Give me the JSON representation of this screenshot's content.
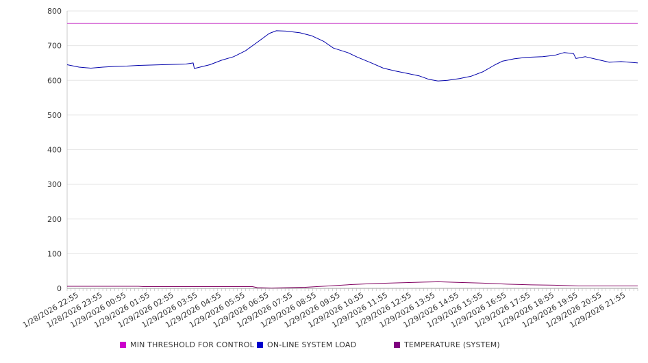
{
  "chart_data": {
    "type": "line",
    "title": "",
    "xlabel": "",
    "ylabel": "",
    "ylim": [
      0,
      800
    ],
    "yticks": [
      0,
      100,
      200,
      300,
      400,
      500,
      600,
      700,
      800
    ],
    "grid": true,
    "legend_position": "bottom",
    "categories": [
      "1/28/2026 22:55",
      "1/28/2026 23:55",
      "1/29/2026 00:55",
      "1/29/2026 01:55",
      "1/29/2026 02:55",
      "1/29/2026 03:55",
      "1/29/2026 04:55",
      "1/29/2026 05:55",
      "1/29/2026 06:55",
      "1/29/2026 07:55",
      "1/29/2026 08:55",
      "1/29/2026 09:55",
      "1/29/2026 10:55",
      "1/29/2026 11:55",
      "1/29/2026 12:55",
      "1/29/2026 13:55",
      "1/29/2026 14:55",
      "1/29/2026 15:55",
      "1/29/2026 16:55",
      "1/29/2026 17:55",
      "1/29/2026 18:55",
      "1/29/2026 19:55",
      "1/29/2026 20:55",
      "1/29/2026 21:55"
    ],
    "x_hours": [
      0,
      24
    ],
    "series": [
      {
        "name": "MIN THRESHOLD FOR CONTROL",
        "color": "#cc00cc",
        "line_color": "#cc44cc",
        "points": [
          [
            0,
            764
          ],
          [
            24,
            764
          ]
        ]
      },
      {
        "name": "ON-LINE SYSTEM LOAD",
        "color": "#0000cc",
        "line_color": "#0000aa",
        "points": [
          [
            0,
            645
          ],
          [
            0.5,
            638
          ],
          [
            1,
            635
          ],
          [
            1.5,
            638
          ],
          [
            2,
            640
          ],
          [
            2.5,
            641
          ],
          [
            3,
            643
          ],
          [
            3.5,
            644
          ],
          [
            4,
            645
          ],
          [
            4.5,
            646
          ],
          [
            5,
            647
          ],
          [
            5.3,
            650
          ],
          [
            5.35,
            634
          ],
          [
            6,
            645
          ],
          [
            6.5,
            658
          ],
          [
            7,
            668
          ],
          [
            7.5,
            685
          ],
          [
            8,
            710
          ],
          [
            8.5,
            735
          ],
          [
            8.8,
            743
          ],
          [
            9.2,
            742
          ],
          [
            9.8,
            737
          ],
          [
            10.3,
            728
          ],
          [
            10.8,
            712
          ],
          [
            11.2,
            693
          ],
          [
            11.8,
            680
          ],
          [
            12.2,
            667
          ],
          [
            12.8,
            650
          ],
          [
            13.3,
            635
          ],
          [
            13.8,
            627
          ],
          [
            14.3,
            620
          ],
          [
            14.8,
            613
          ],
          [
            15.2,
            603
          ],
          [
            15.6,
            598
          ],
          [
            16,
            600
          ],
          [
            16.5,
            605
          ],
          [
            17,
            612
          ],
          [
            17.5,
            625
          ],
          [
            18,
            645
          ],
          [
            18.3,
            655
          ],
          [
            18.8,
            662
          ],
          [
            19.3,
            666
          ],
          [
            20,
            668
          ],
          [
            20.5,
            672
          ],
          [
            20.9,
            680
          ],
          [
            21.3,
            677
          ],
          [
            21.4,
            663
          ],
          [
            21.8,
            668
          ],
          [
            22.3,
            660
          ],
          [
            22.8,
            652
          ],
          [
            23.3,
            654
          ],
          [
            24,
            650
          ]
        ]
      },
      {
        "name": "TEMPERATURE (SYSTEM)",
        "color": "#800080",
        "line_color": "#800060",
        "points": [
          [
            0,
            6
          ],
          [
            3,
            6
          ],
          [
            3.2,
            5
          ],
          [
            7.8,
            5
          ],
          [
            8,
            2
          ],
          [
            8.6,
            1
          ],
          [
            9.3,
            2
          ],
          [
            10,
            3
          ],
          [
            11,
            7
          ],
          [
            12,
            11
          ],
          [
            13,
            14
          ],
          [
            14,
            16
          ],
          [
            15,
            18
          ],
          [
            15.6,
            19
          ],
          [
            16.5,
            17
          ],
          [
            17.5,
            15
          ],
          [
            18.5,
            12
          ],
          [
            19.5,
            10
          ],
          [
            20.5,
            9
          ],
          [
            21.5,
            7
          ],
          [
            24,
            7
          ]
        ]
      }
    ]
  }
}
